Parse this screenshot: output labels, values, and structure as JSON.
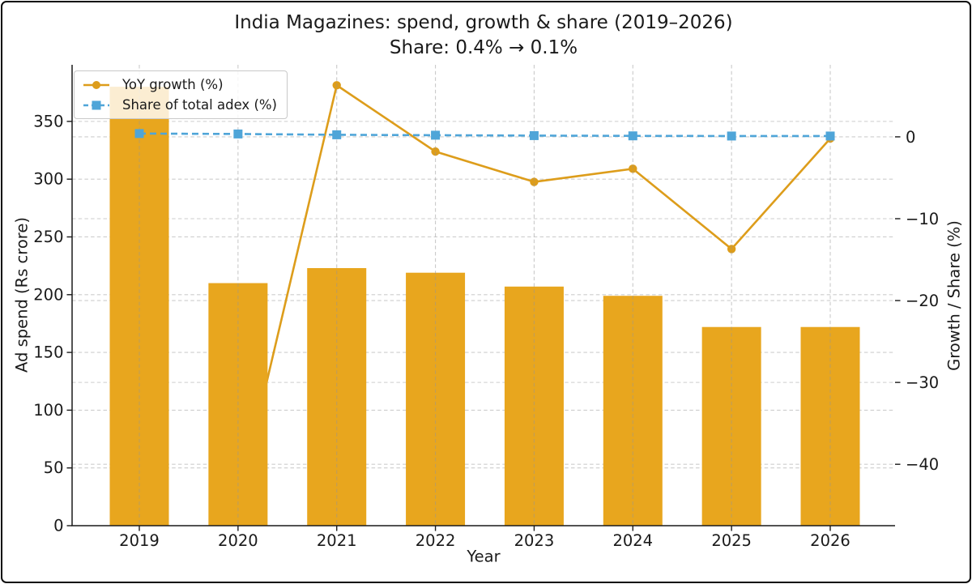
{
  "figure": {
    "title": "India Magazines: spend, growth & share (2019–2026)",
    "subtitle": "Share: 0.4% → 0.1%"
  },
  "legend": {
    "items": [
      {
        "label": "YoY growth (%)",
        "swatch": "solid-line-circle-marker"
      },
      {
        "label": "Share of total adex (%)",
        "swatch": "dashed-line-square-marker"
      }
    ]
  },
  "axes": {
    "x": {
      "label": "Year",
      "tick_labels": [
        "2019",
        "2020",
        "2021",
        "2022",
        "2023",
        "2024",
        "2025",
        "2026"
      ]
    },
    "y_left": {
      "label": "Ad spend (Rs crore)",
      "tick_values": [
        0,
        50,
        100,
        150,
        200,
        250,
        300,
        350
      ],
      "range": [
        0,
        399
      ]
    },
    "y_right": {
      "label": "Growth / Share (%)",
      "tick_values": [
        0,
        -10,
        -20,
        -30,
        -40
      ],
      "range": [
        -47.5,
        8.8
      ]
    }
  },
  "chart_data": {
    "type": "combo",
    "title": "India Magazines: spend, growth & share (2019–2026)",
    "subtitle": "Share: 0.4% → 0.1%",
    "xlabel": "Year",
    "ylabel_left": "Ad spend (Rs crore)",
    "ylabel_right": "Growth / Share (%)",
    "categories": [
      2019,
      2020,
      2021,
      2022,
      2023,
      2024,
      2025,
      2026
    ],
    "series": [
      {
        "name": "Ad spend (Rs crore)",
        "type": "bar",
        "axis": "left",
        "color": "#E8A61E",
        "values": [
          380,
          210,
          223,
          219,
          207,
          199,
          172,
          172
        ]
      },
      {
        "name": "YoY growth (%)",
        "type": "line",
        "axis": "right",
        "marker": "circle",
        "color": "#DD9D1B",
        "values": [
          null,
          -44.8,
          6.3,
          -1.8,
          -5.5,
          -3.9,
          -13.7,
          -0.2
        ]
      },
      {
        "name": "Share of total adex (%)",
        "type": "dashed-line",
        "axis": "right",
        "marker": "square",
        "color": "#4FA5D8",
        "values": [
          0.4,
          0.35,
          0.25,
          0.2,
          0.15,
          0.12,
          0.1,
          0.1
        ]
      }
    ],
    "ylim_left": [
      0,
      399
    ],
    "ylim_right": [
      -47.5,
      8.8
    ],
    "grid": true,
    "grid_style": "dashed",
    "legend_position": "upper-left",
    "colors": {
      "bar": "#E8A61E",
      "growth_line": "#DD9D1B",
      "share_line": "#4FA5D8",
      "grid": "#cdcdcd",
      "spine": "#1a1a1a",
      "text": "#1a1a1a"
    }
  }
}
